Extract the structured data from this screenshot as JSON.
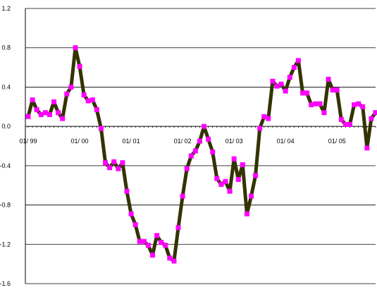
{
  "chart_data": {
    "type": "line",
    "title": "",
    "xlabel": "",
    "ylabel": "",
    "ylim": [
      -1.6,
      1.2
    ],
    "y_ticks": [
      "1.2",
      "0.8",
      "0.4",
      "0.0",
      "-0.4",
      "-0.8",
      "-1.2",
      "-1.6"
    ],
    "y_tick_values": [
      1.2,
      0.8,
      0.4,
      0.0,
      -0.4,
      -0.8,
      -1.2,
      -1.6
    ],
    "x_tick_labels": [
      "01/ 99",
      "01/ 00",
      "01/ 01",
      "01/ 02",
      "01/ 03",
      "01/ 04",
      "01/ 05"
    ],
    "x_label_index": [
      0,
      12,
      24,
      36,
      48,
      60,
      72
    ],
    "grid": true,
    "line_color": "#333300",
    "marker_color": "#ff00ff",
    "series": [
      {
        "values": [
          0.1,
          0.27,
          0.17,
          0.12,
          0.14,
          0.12,
          0.25,
          0.14,
          0.08,
          0.33,
          0.4,
          0.8,
          0.61,
          0.32,
          0.26,
          0.27,
          0.17,
          -0.02,
          -0.37,
          -0.42,
          -0.36,
          -0.43,
          -0.37,
          -0.66,
          -0.89,
          -1.0,
          -1.17,
          -1.17,
          -1.21,
          -1.31,
          -1.11,
          -1.18,
          -1.21,
          -1.34,
          -1.37,
          -1.03,
          -0.71,
          -0.43,
          -0.3,
          -0.25,
          -0.15,
          0.0,
          -0.13,
          -0.26,
          -0.53,
          -0.59,
          -0.56,
          -0.66,
          -0.33,
          -0.54,
          -0.39,
          -0.89,
          -0.71,
          -0.5,
          -0.02,
          0.1,
          0.08,
          0.46,
          0.41,
          0.43,
          0.36,
          0.5,
          0.6,
          0.67,
          0.34,
          0.34,
          0.22,
          0.23,
          0.23,
          0.14,
          0.48,
          0.37,
          0.37,
          0.07,
          0.02,
          0.02,
          0.22,
          0.23,
          0.2,
          -0.22,
          0.08,
          0.14
        ]
      }
    ]
  }
}
